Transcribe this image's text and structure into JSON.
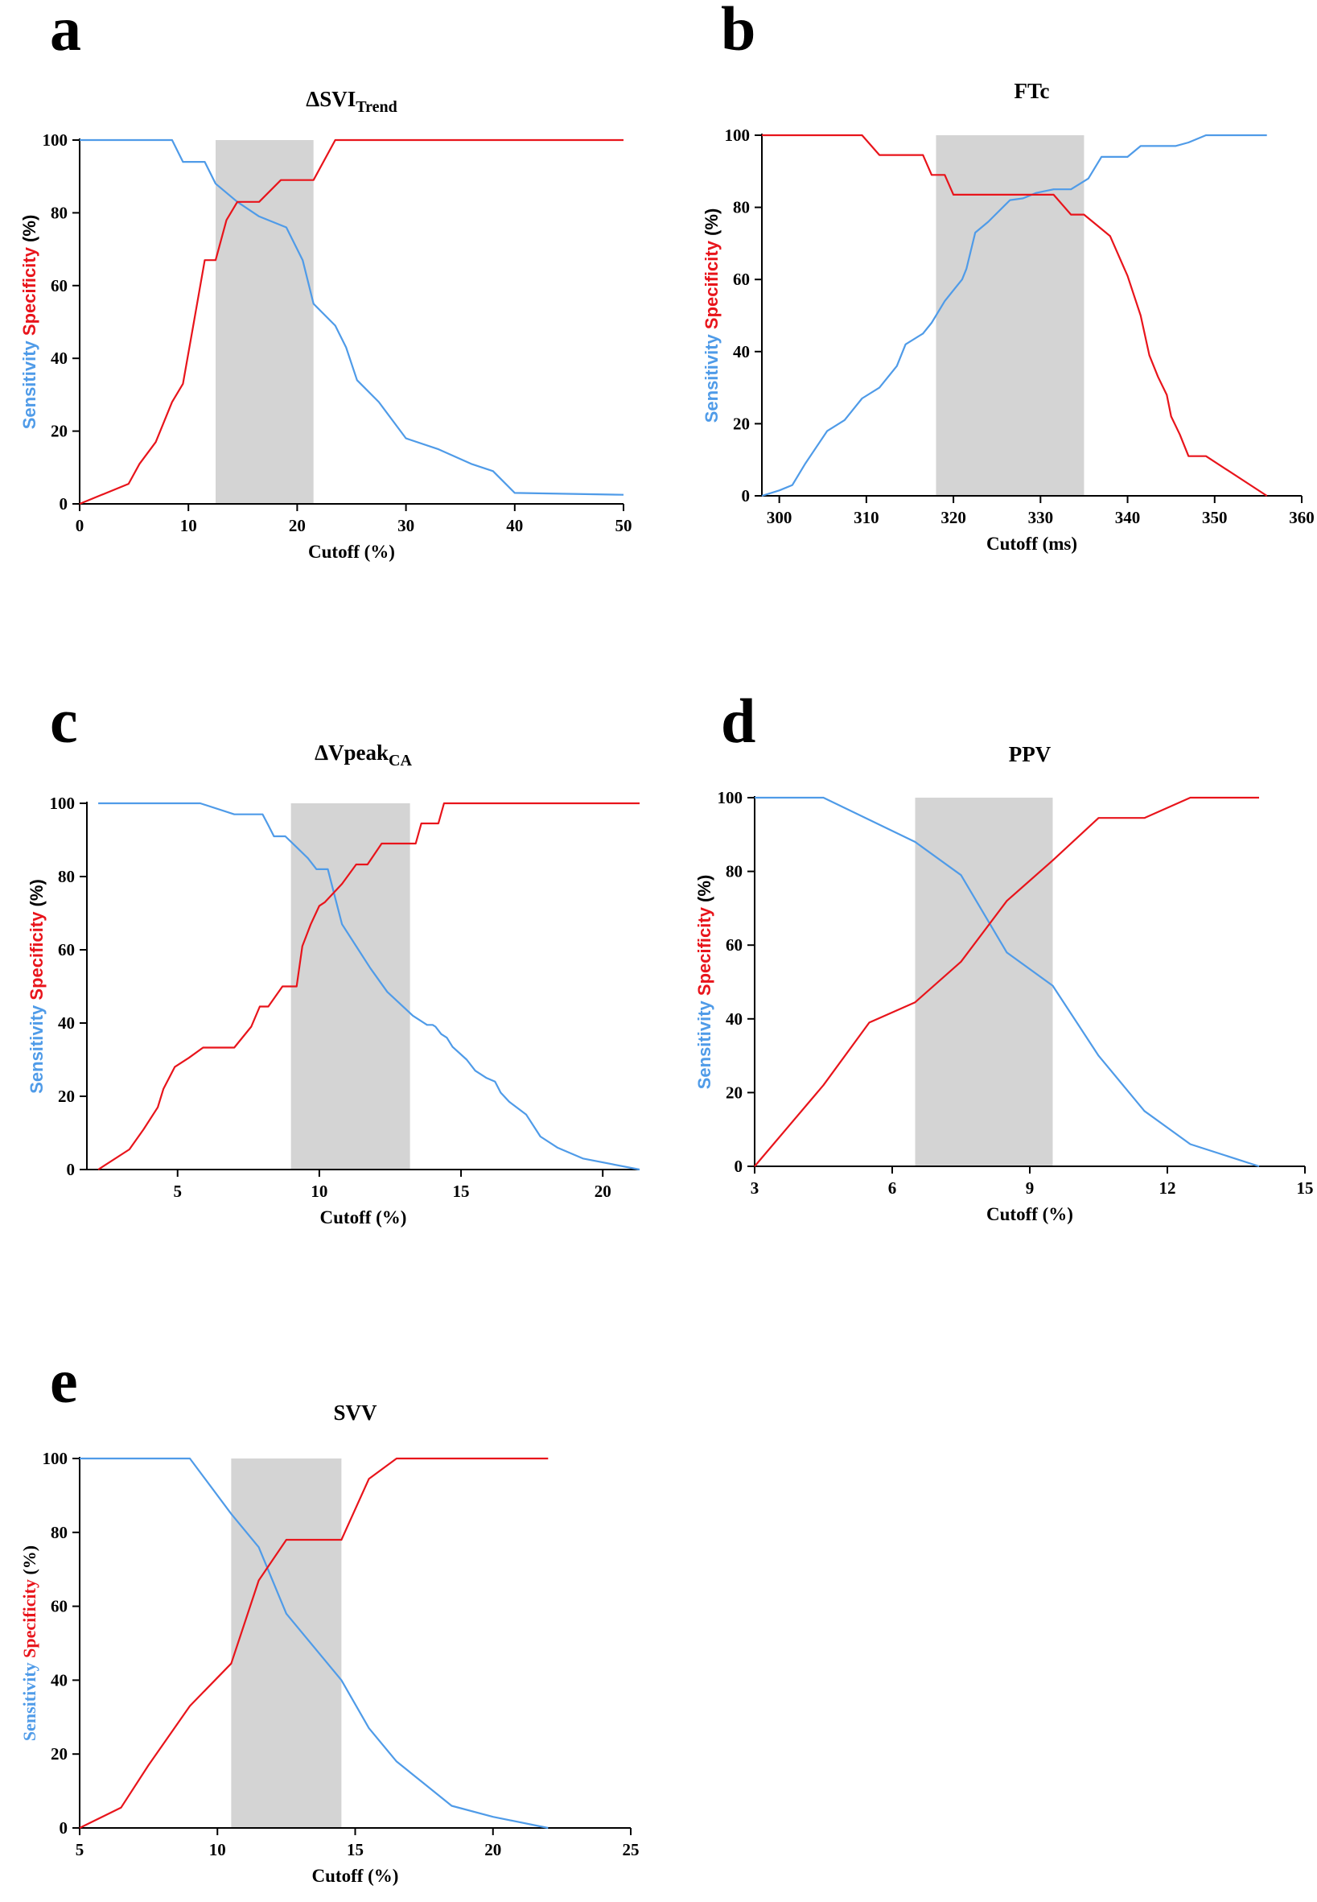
{
  "colors": {
    "sensitivity": "#4f9be8",
    "specificity": "#e8141b",
    "band": "#d4d4d4",
    "axis": "#000000"
  },
  "chart_data": [
    {
      "id": "a",
      "type": "line",
      "panel_label": "a",
      "title_main": "ΔSVI",
      "title_sub": "Trend",
      "xlabel": "Cutoff (%)",
      "ylabel_sensitivity": "Sensitivity",
      "ylabel_specificity": "Specificity",
      "ylabel_unit": "(%)",
      "xlim": [
        0,
        50
      ],
      "ylim": [
        0,
        100
      ],
      "xticks": [
        0,
        10,
        20,
        30,
        40,
        50
      ],
      "yticks": [
        0,
        20,
        40,
        60,
        80,
        100
      ],
      "shaded_range": [
        12.5,
        21.5
      ],
      "series": [
        {
          "name": "Sensitivity",
          "color": "#4f9be8",
          "x": [
            0,
            8.5,
            9.5,
            11.5,
            12.5,
            14.5,
            16.5,
            19.0,
            20.5,
            21.5,
            23.5,
            24.5,
            25.5,
            27.5,
            30.0,
            33.0,
            36.0,
            38.0,
            40.0,
            50.0
          ],
          "y": [
            100,
            100,
            94,
            94,
            88,
            83,
            79,
            76,
            67,
            55,
            49,
            43,
            34,
            28,
            18,
            15,
            11,
            9,
            3,
            2.5
          ]
        },
        {
          "name": "Specificity",
          "color": "#e8141b",
          "x": [
            0,
            4.5,
            5.5,
            7.0,
            8.5,
            9.5,
            10.5,
            11.5,
            12.5,
            13.5,
            14.5,
            16.5,
            18.5,
            21.5,
            23.5,
            50.0
          ],
          "y": [
            0,
            5.5,
            11,
            17,
            28,
            33,
            50,
            67,
            67,
            78,
            83,
            83,
            89,
            89,
            100,
            100
          ]
        }
      ]
    },
    {
      "id": "b",
      "type": "line",
      "panel_label": "b",
      "title_main": "FTc",
      "title_sub": "",
      "xlabel": "Cutoff (ms)",
      "ylabel_sensitivity": "Sensitivity",
      "ylabel_specificity": "Specificity",
      "ylabel_unit": "(%)",
      "xlim": [
        298,
        360
      ],
      "ylim": [
        0,
        100
      ],
      "xticks": [
        300,
        310,
        320,
        330,
        340,
        350,
        360
      ],
      "yticks": [
        0,
        20,
        40,
        60,
        80,
        100
      ],
      "shaded_range": [
        318,
        335
      ],
      "series": [
        {
          "name": "Sensitivity",
          "color": "#4f9be8",
          "x": [
            298,
            300,
            301.5,
            303,
            305.5,
            307.5,
            309.5,
            311.5,
            313.5,
            314.5,
            316.5,
            317.5,
            319,
            320,
            321,
            321.5,
            322.5,
            324,
            326.5,
            328,
            329.5,
            331.5,
            333.5,
            335.5,
            337,
            340,
            341.5,
            345.5,
            347,
            349,
            356
          ],
          "y": [
            0,
            1.5,
            3,
            9,
            18,
            21,
            27,
            30,
            36,
            42,
            45,
            48,
            54,
            57,
            60,
            63,
            73,
            76,
            82,
            82.5,
            84,
            85,
            85,
            88,
            94,
            94,
            97,
            97,
            98,
            100,
            100
          ]
        },
        {
          "name": "Specificity",
          "color": "#e8141b",
          "x": [
            298,
            309.5,
            311.5,
            316.5,
            317.5,
            319,
            320,
            330,
            331.5,
            333.5,
            335,
            336.5,
            338,
            340,
            341.5,
            342.5,
            343.5,
            344.5,
            345,
            346,
            347,
            349,
            356
          ],
          "y": [
            100,
            100,
            94.5,
            94.5,
            89,
            89,
            83.5,
            83.5,
            83.5,
            78,
            78,
            75,
            72,
            61,
            50,
            39,
            33,
            28,
            22,
            17,
            11,
            11,
            0
          ]
        }
      ]
    },
    {
      "id": "c",
      "type": "line",
      "panel_label": "c",
      "title_main": "ΔVpeak",
      "title_sub": "CA",
      "xlabel": "Cutoff (%)",
      "ylabel_sensitivity": "Sensitivity",
      "ylabel_specificity": "Specificity",
      "ylabel_unit": "(%)",
      "xlim": [
        1.8,
        21.3
      ],
      "ylim": [
        0,
        100
      ],
      "xticks": [
        5,
        10,
        15,
        20
      ],
      "yticks": [
        0,
        20,
        40,
        60,
        80,
        100
      ],
      "shaded_range": [
        9.0,
        13.2
      ],
      "series": [
        {
          "name": "Sensitivity",
          "color": "#4f9be8",
          "x": [
            2.2,
            5.8,
            7.0,
            8.0,
            8.2,
            8.4,
            8.8,
            9.2,
            9.6,
            9.9,
            10.3,
            10.5,
            10.8,
            11.3,
            11.8,
            12.4,
            13.3,
            13.8,
            14.0,
            14.1,
            14.3,
            14.5,
            14.7,
            15.2,
            15.5,
            15.9,
            16.2,
            16.4,
            16.7,
            17.3,
            17.8,
            18.4,
            19.3,
            21.3
          ],
          "y": [
            100,
            100,
            97,
            97,
            94,
            91,
            91,
            88,
            85,
            82,
            82,
            76,
            67,
            61,
            55,
            48.5,
            42,
            39.5,
            39.5,
            39,
            37,
            36,
            33.5,
            30,
            27,
            25,
            24,
            21,
            18.5,
            15,
            9,
            6,
            3,
            0
          ]
        },
        {
          "name": "Specificity",
          "color": "#e8141b",
          "x": [
            2.2,
            3.3,
            3.8,
            4.3,
            4.5,
            4.9,
            5.4,
            5.9,
            7.0,
            7.6,
            7.9,
            8.2,
            8.7,
            9.2,
            9.4,
            9.7,
            10.0,
            10.2,
            10.8,
            11.3,
            11.7,
            12.2,
            12.9,
            13.4,
            13.6,
            14.2,
            14.4,
            21.3
          ],
          "y": [
            0,
            5.5,
            11,
            17,
            22,
            28,
            30.5,
            33.3,
            33.3,
            39,
            44.5,
            44.5,
            50,
            50,
            61,
            67,
            72,
            73,
            78,
            83.3,
            83.3,
            89,
            89,
            89,
            94.5,
            94.5,
            100,
            100
          ]
        }
      ]
    },
    {
      "id": "d",
      "type": "line",
      "panel_label": "d",
      "title_main": "PPV",
      "title_sub": "",
      "xlabel": "Cutoff (%)",
      "ylabel_sensitivity": "Sensitivity",
      "ylabel_specificity": "Specificity",
      "ylabel_unit": "(%)",
      "xlim": [
        3,
        15
      ],
      "ylim": [
        0,
        100
      ],
      "xticks": [
        3,
        6,
        9,
        12,
        15
      ],
      "yticks": [
        0,
        20,
        40,
        60,
        80,
        100
      ],
      "shaded_range": [
        6.5,
        9.5
      ],
      "series": [
        {
          "name": "Sensitivity",
          "color": "#4f9be8",
          "x": [
            3,
            4.5,
            5.5,
            6.5,
            7.5,
            8.5,
            9.5,
            10.5,
            11.5,
            12.5,
            14.0
          ],
          "y": [
            100,
            100,
            94,
            88,
            79,
            58,
            49,
            30,
            15,
            6,
            0
          ]
        },
        {
          "name": "Specificity",
          "color": "#e8141b",
          "x": [
            3,
            4.5,
            5.5,
            6.5,
            7.5,
            8.5,
            9.5,
            10.5,
            11.5,
            12.5,
            14.0
          ],
          "y": [
            0,
            22,
            39,
            44.5,
            55.5,
            72,
            83,
            94.5,
            94.5,
            100,
            100
          ]
        }
      ]
    },
    {
      "id": "e",
      "type": "line",
      "panel_label": "e",
      "title_main": "SVV",
      "title_sub": "",
      "xlabel": "Cutoff (%)",
      "ylabel_sensitivity": "Sensitivity",
      "ylabel_specificity": "Specificity",
      "ylabel_unit": "(%)",
      "xlim": [
        5,
        25
      ],
      "ylim": [
        0,
        100
      ],
      "xticks": [
        5,
        10,
        15,
        20,
        25
      ],
      "yticks": [
        0,
        20,
        40,
        60,
        80,
        100
      ],
      "shaded_range": [
        10.5,
        14.5
      ],
      "series": [
        {
          "name": "Sensitivity",
          "color": "#4f9be8",
          "x": [
            5,
            9.0,
            10.5,
            11.5,
            12.5,
            13.5,
            14.5,
            15.5,
            16.5,
            17.5,
            18.5,
            20.0,
            22.0
          ],
          "y": [
            100,
            100,
            85,
            76,
            58,
            49,
            40,
            27,
            18,
            12,
            6,
            3,
            0
          ]
        },
        {
          "name": "Specificity",
          "color": "#e8141b",
          "x": [
            5,
            6.5,
            7.5,
            9.0,
            10.5,
            11.5,
            12.5,
            14.5,
            15.5,
            16.5,
            22.0
          ],
          "y": [
            0,
            5.5,
            17,
            33,
            44.5,
            67,
            78,
            78,
            94.5,
            100,
            100
          ]
        }
      ]
    }
  ]
}
